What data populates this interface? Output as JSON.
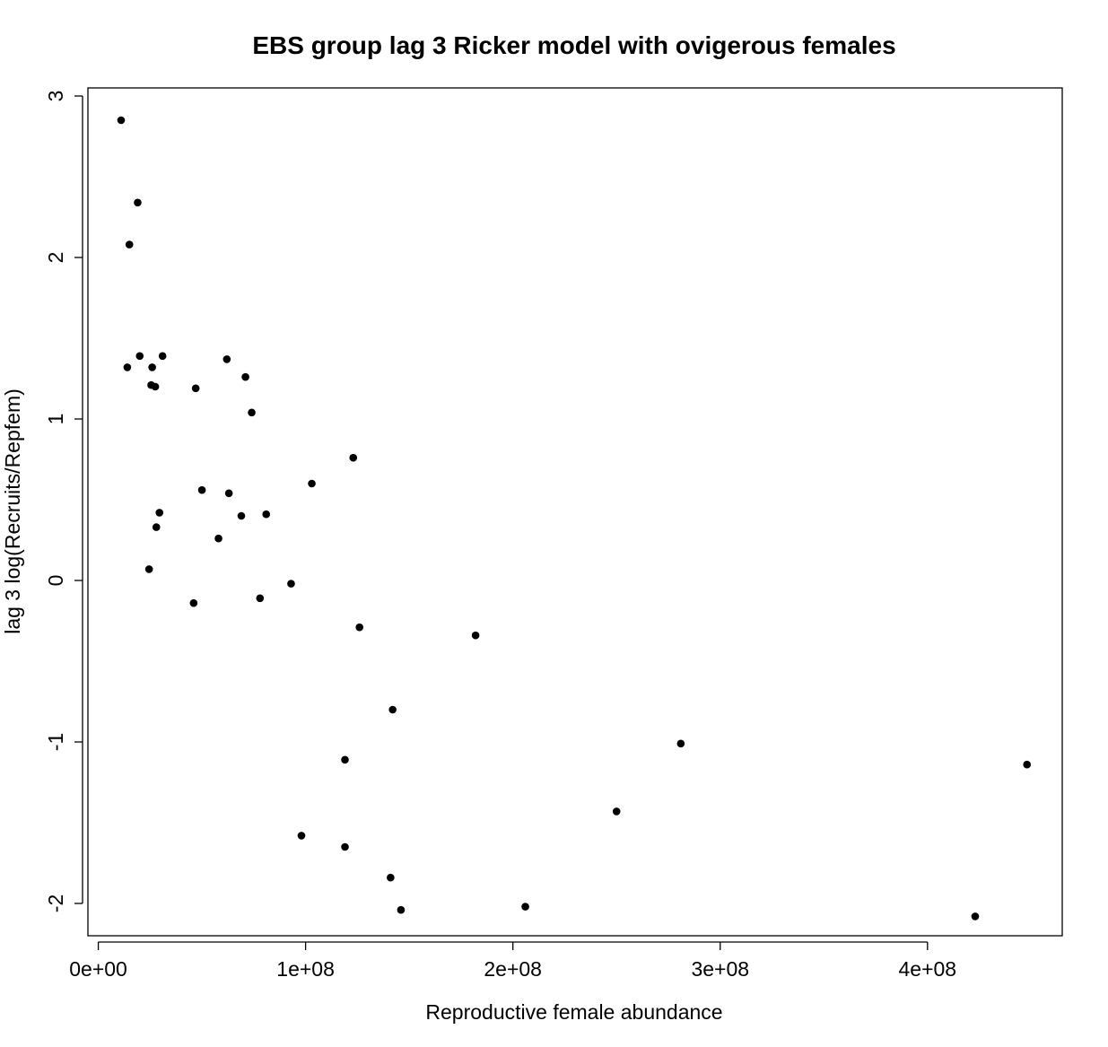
{
  "chart_data": {
    "type": "scatter",
    "title": "EBS group lag 3 Ricker model with ovigerous females",
    "xlabel": "Reproductive female abundance",
    "ylabel": "lag 3 log(Recruits/Repfem)",
    "xlim": [
      -5000000,
      465000000
    ],
    "ylim": [
      -2.2,
      3.05
    ],
    "x_ticks": [
      0,
      100000000,
      200000000,
      300000000,
      400000000
    ],
    "x_tick_labels": [
      "0e+00",
      "1e+08",
      "2e+08",
      "3e+08",
      "4e+08"
    ],
    "y_ticks": [
      -2,
      -1,
      0,
      1,
      2,
      3
    ],
    "y_tick_labels": [
      "-2",
      "-1",
      "0",
      "1",
      "2",
      "3"
    ],
    "grid": false,
    "marker_color": "#000000",
    "points": [
      {
        "x": 11000000,
        "y": 2.85
      },
      {
        "x": 19000000,
        "y": 2.34
      },
      {
        "x": 15000000,
        "y": 2.08
      },
      {
        "x": 20000000,
        "y": 1.39
      },
      {
        "x": 31000000,
        "y": 1.39
      },
      {
        "x": 14000000,
        "y": 1.32
      },
      {
        "x": 26000000,
        "y": 1.32
      },
      {
        "x": 25500000,
        "y": 1.21
      },
      {
        "x": 27500000,
        "y": 1.2
      },
      {
        "x": 62000000,
        "y": 1.37
      },
      {
        "x": 71000000,
        "y": 1.26
      },
      {
        "x": 47000000,
        "y": 1.19
      },
      {
        "x": 74000000,
        "y": 1.04
      },
      {
        "x": 123000000,
        "y": 0.76
      },
      {
        "x": 103000000,
        "y": 0.6
      },
      {
        "x": 50000000,
        "y": 0.56
      },
      {
        "x": 63000000,
        "y": 0.54
      },
      {
        "x": 29500000,
        "y": 0.42
      },
      {
        "x": 69000000,
        "y": 0.4
      },
      {
        "x": 81000000,
        "y": 0.41
      },
      {
        "x": 28000000,
        "y": 0.33
      },
      {
        "x": 58000000,
        "y": 0.26
      },
      {
        "x": 24500000,
        "y": 0.07
      },
      {
        "x": 93000000,
        "y": -0.02
      },
      {
        "x": 46000000,
        "y": -0.14
      },
      {
        "x": 78000000,
        "y": -0.11
      },
      {
        "x": 126000000,
        "y": -0.29
      },
      {
        "x": 182000000,
        "y": -0.34
      },
      {
        "x": 142000000,
        "y": -0.8
      },
      {
        "x": 119000000,
        "y": -1.11
      },
      {
        "x": 281000000,
        "y": -1.01
      },
      {
        "x": 448000000,
        "y": -1.14
      },
      {
        "x": 250000000,
        "y": -1.43
      },
      {
        "x": 98000000,
        "y": -1.58
      },
      {
        "x": 119000000,
        "y": -1.65
      },
      {
        "x": 141000000,
        "y": -1.84
      },
      {
        "x": 146000000,
        "y": -2.04
      },
      {
        "x": 206000000,
        "y": -2.02
      },
      {
        "x": 423000000,
        "y": -2.08
      }
    ]
  }
}
